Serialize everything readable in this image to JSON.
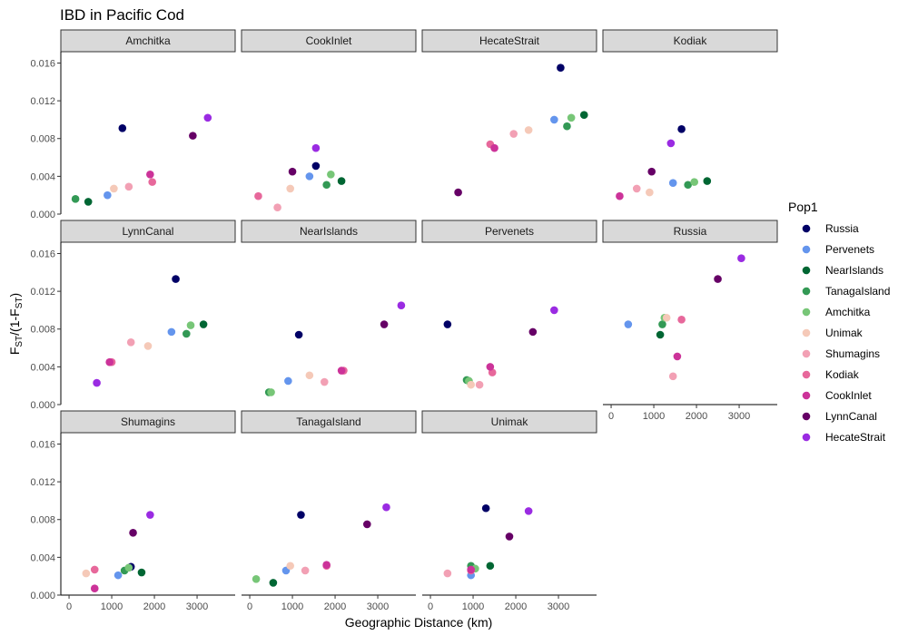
{
  "chart_data": {
    "type": "scatter",
    "title": "IBD in Pacific Cod",
    "xlabel": "Geographic Distance (km)",
    "ylabel": {
      "main": "F",
      "sub1": "ST",
      "mid": "/(1-F",
      "sub2": "ST",
      "end": ")"
    },
    "xlim": [
      -150,
      3850
    ],
    "ylim": [
      0,
      0.0172
    ],
    "x_ticks": [
      0,
      1000,
      2000,
      3000
    ],
    "y_ticks": [
      0.0,
      0.004,
      0.008,
      0.012,
      0.016
    ],
    "y_tick_labels": [
      "0.000",
      "0.004",
      "0.008",
      "0.012",
      "0.016"
    ],
    "legend": {
      "title": "Pop1",
      "entries": [
        {
          "name": "Russia",
          "color": "#000066"
        },
        {
          "name": "Pervenets",
          "color": "#6495ED"
        },
        {
          "name": "NearIslands",
          "color": "#006633"
        },
        {
          "name": "TanagaIsland",
          "color": "#339955"
        },
        {
          "name": "Amchitka",
          "color": "#77C677"
        },
        {
          "name": "Unimak",
          "color": "#F5C9B8"
        },
        {
          "name": "Shumagins",
          "color": "#F2A0B4"
        },
        {
          "name": "Kodiak",
          "color": "#E7689B"
        },
        {
          "name": "CookInlet",
          "color": "#CC3399"
        },
        {
          "name": "LynnCanal",
          "color": "#660066"
        },
        {
          "name": "HecateStrait",
          "color": "#9A2BE2"
        }
      ]
    },
    "facets": [
      {
        "name": "Amchitka",
        "points": [
          {
            "pop": "Russia",
            "x": 1250,
            "y": 0.0091
          },
          {
            "pop": "Pervenets",
            "x": 900,
            "y": 0.002
          },
          {
            "pop": "NearIslands",
            "x": 450,
            "y": 0.0013
          },
          {
            "pop": "TanagaIsland",
            "x": 150,
            "y": 0.0016
          },
          {
            "pop": "Unimak",
            "x": 1050,
            "y": 0.0027
          },
          {
            "pop": "Shumagins",
            "x": 1400,
            "y": 0.0029
          },
          {
            "pop": "Kodiak",
            "x": 1950,
            "y": 0.0034
          },
          {
            "pop": "CookInlet",
            "x": 1900,
            "y": 0.0042
          },
          {
            "pop": "LynnCanal",
            "x": 2900,
            "y": 0.0083
          },
          {
            "pop": "HecateStrait",
            "x": 3250,
            "y": 0.0102
          }
        ]
      },
      {
        "name": "CookInlet",
        "points": [
          {
            "pop": "Russia",
            "x": 1550,
            "y": 0.0051
          },
          {
            "pop": "Pervenets",
            "x": 1400,
            "y": 0.004
          },
          {
            "pop": "NearIslands",
            "x": 2150,
            "y": 0.0035
          },
          {
            "pop": "TanagaIsland",
            "x": 1800,
            "y": 0.0031
          },
          {
            "pop": "Amchitka",
            "x": 1900,
            "y": 0.0042
          },
          {
            "pop": "Unimak",
            "x": 950,
            "y": 0.0027
          },
          {
            "pop": "Shumagins",
            "x": 650,
            "y": 0.0007
          },
          {
            "pop": "Kodiak",
            "x": 200,
            "y": 0.0019
          },
          {
            "pop": "LynnCanal",
            "x": 1000,
            "y": 0.0045
          },
          {
            "pop": "HecateStrait",
            "x": 1550,
            "y": 0.007
          }
        ]
      },
      {
        "name": "HecateStrait",
        "points": [
          {
            "pop": "Russia",
            "x": 3050,
            "y": 0.0155
          },
          {
            "pop": "Pervenets",
            "x": 2900,
            "y": 0.01
          },
          {
            "pop": "NearIslands",
            "x": 3600,
            "y": 0.0105
          },
          {
            "pop": "TanagaIsland",
            "x": 3200,
            "y": 0.0093
          },
          {
            "pop": "Amchitka",
            "x": 3300,
            "y": 0.0102
          },
          {
            "pop": "Unimak",
            "x": 2300,
            "y": 0.0089
          },
          {
            "pop": "Shumagins",
            "x": 1950,
            "y": 0.0085
          },
          {
            "pop": "Kodiak",
            "x": 1400,
            "y": 0.0074
          },
          {
            "pop": "CookInlet",
            "x": 1500,
            "y": 0.007
          },
          {
            "pop": "LynnCanal",
            "x": 650,
            "y": 0.0023
          }
        ]
      },
      {
        "name": "Kodiak",
        "points": [
          {
            "pop": "Russia",
            "x": 1650,
            "y": 0.009
          },
          {
            "pop": "Pervenets",
            "x": 1450,
            "y": 0.0033
          },
          {
            "pop": "NearIslands",
            "x": 2250,
            "y": 0.0035
          },
          {
            "pop": "TanagaIsland",
            "x": 1800,
            "y": 0.0031
          },
          {
            "pop": "Amchitka",
            "x": 1950,
            "y": 0.0034
          },
          {
            "pop": "Unimak",
            "x": 900,
            "y": 0.0023
          },
          {
            "pop": "Shumagins",
            "x": 600,
            "y": 0.0027
          },
          {
            "pop": "CookInlet",
            "x": 200,
            "y": 0.0019
          },
          {
            "pop": "LynnCanal",
            "x": 950,
            "y": 0.0045
          },
          {
            "pop": "HecateStrait",
            "x": 1400,
            "y": 0.0075
          }
        ]
      },
      {
        "name": "LynnCanal",
        "points": [
          {
            "pop": "Russia",
            "x": 2500,
            "y": 0.0133
          },
          {
            "pop": "Pervenets",
            "x": 2400,
            "y": 0.0077
          },
          {
            "pop": "NearIslands",
            "x": 3150,
            "y": 0.0085
          },
          {
            "pop": "TanagaIsland",
            "x": 2750,
            "y": 0.0075
          },
          {
            "pop": "Amchitka",
            "x": 2850,
            "y": 0.0084
          },
          {
            "pop": "Unimak",
            "x": 1850,
            "y": 0.0062
          },
          {
            "pop": "Shumagins",
            "x": 1450,
            "y": 0.0066
          },
          {
            "pop": "Kodiak",
            "x": 1000,
            "y": 0.0045
          },
          {
            "pop": "CookInlet",
            "x": 950,
            "y": 0.0045
          },
          {
            "pop": "HecateStrait",
            "x": 650,
            "y": 0.0023
          }
        ]
      },
      {
        "name": "NearIslands",
        "points": [
          {
            "pop": "Russia",
            "x": 1150,
            "y": 0.0074
          },
          {
            "pop": "Pervenets",
            "x": 900,
            "y": 0.0025
          },
          {
            "pop": "TanagaIsland",
            "x": 450,
            "y": 0.0013
          },
          {
            "pop": "Amchitka",
            "x": 500,
            "y": 0.0013
          },
          {
            "pop": "Unimak",
            "x": 1400,
            "y": 0.0031
          },
          {
            "pop": "Shumagins",
            "x": 1750,
            "y": 0.0024
          },
          {
            "pop": "Kodiak",
            "x": 2200,
            "y": 0.0036
          },
          {
            "pop": "CookInlet",
            "x": 2150,
            "y": 0.0036
          },
          {
            "pop": "LynnCanal",
            "x": 3150,
            "y": 0.0085
          },
          {
            "pop": "HecateStrait",
            "x": 3550,
            "y": 0.0105
          }
        ]
      },
      {
        "name": "Pervenets",
        "points": [
          {
            "pop": "Russia",
            "x": 400,
            "y": 0.0085
          },
          {
            "pop": "NearIslands",
            "x": 900,
            "y": 0.0025
          },
          {
            "pop": "TanagaIsland",
            "x": 850,
            "y": 0.0026
          },
          {
            "pop": "Amchitka",
            "x": 900,
            "y": 0.0025
          },
          {
            "pop": "Unimak",
            "x": 950,
            "y": 0.0021
          },
          {
            "pop": "Shumagins",
            "x": 1150,
            "y": 0.0021
          },
          {
            "pop": "Kodiak",
            "x": 1450,
            "y": 0.0034
          },
          {
            "pop": "CookInlet",
            "x": 1400,
            "y": 0.004
          },
          {
            "pop": "LynnCanal",
            "x": 2400,
            "y": 0.0077
          },
          {
            "pop": "HecateStrait",
            "x": 2900,
            "y": 0.01
          }
        ]
      },
      {
        "name": "Russia",
        "points": [
          {
            "pop": "Pervenets",
            "x": 400,
            "y": 0.0085
          },
          {
            "pop": "NearIslands",
            "x": 1150,
            "y": 0.0074
          },
          {
            "pop": "TanagaIsland",
            "x": 1200,
            "y": 0.0085
          },
          {
            "pop": "Amchitka",
            "x": 1250,
            "y": 0.0092
          },
          {
            "pop": "Unimak",
            "x": 1300,
            "y": 0.0092
          },
          {
            "pop": "Shumagins",
            "x": 1450,
            "y": 0.003
          },
          {
            "pop": "Kodiak",
            "x": 1650,
            "y": 0.009
          },
          {
            "pop": "CookInlet",
            "x": 1550,
            "y": 0.0051
          },
          {
            "pop": "LynnCanal",
            "x": 2500,
            "y": 0.0133
          },
          {
            "pop": "HecateStrait",
            "x": 3050,
            "y": 0.0155
          }
        ]
      },
      {
        "name": "Shumagins",
        "points": [
          {
            "pop": "Russia",
            "x": 1450,
            "y": 0.003
          },
          {
            "pop": "Pervenets",
            "x": 1150,
            "y": 0.0021
          },
          {
            "pop": "NearIslands",
            "x": 1700,
            "y": 0.0024
          },
          {
            "pop": "TanagaIsland",
            "x": 1300,
            "y": 0.0026
          },
          {
            "pop": "Amchitka",
            "x": 1400,
            "y": 0.0029
          },
          {
            "pop": "Unimak",
            "x": 400,
            "y": 0.0023
          },
          {
            "pop": "Kodiak",
            "x": 600,
            "y": 0.0027
          },
          {
            "pop": "CookInlet",
            "x": 600,
            "y": 0.0007
          },
          {
            "pop": "LynnCanal",
            "x": 1500,
            "y": 0.0066
          },
          {
            "pop": "HecateStrait",
            "x": 1900,
            "y": 0.0085
          }
        ]
      },
      {
        "name": "TanagaIsland",
        "points": [
          {
            "pop": "Russia",
            "x": 1200,
            "y": 0.0085
          },
          {
            "pop": "Pervenets",
            "x": 850,
            "y": 0.0026
          },
          {
            "pop": "NearIslands",
            "x": 550,
            "y": 0.0013
          },
          {
            "pop": "Amchitka",
            "x": 150,
            "y": 0.0017
          },
          {
            "pop": "Unimak",
            "x": 950,
            "y": 0.0031
          },
          {
            "pop": "Shumagins",
            "x": 1300,
            "y": 0.0026
          },
          {
            "pop": "Kodiak",
            "x": 1800,
            "y": 0.0031
          },
          {
            "pop": "CookInlet",
            "x": 1800,
            "y": 0.0032
          },
          {
            "pop": "LynnCanal",
            "x": 2750,
            "y": 0.0075
          },
          {
            "pop": "HecateStrait",
            "x": 3200,
            "y": 0.0093
          }
        ]
      },
      {
        "name": "Unimak",
        "points": [
          {
            "pop": "Russia",
            "x": 1300,
            "y": 0.0092
          },
          {
            "pop": "Pervenets",
            "x": 950,
            "y": 0.0021
          },
          {
            "pop": "NearIslands",
            "x": 1400,
            "y": 0.0031
          },
          {
            "pop": "TanagaIsland",
            "x": 950,
            "y": 0.0031
          },
          {
            "pop": "Amchitka",
            "x": 1050,
            "y": 0.0028
          },
          {
            "pop": "Shumagins",
            "x": 400,
            "y": 0.0023
          },
          {
            "pop": "Kodiak",
            "x": 950,
            "y": 0.0026
          },
          {
            "pop": "CookInlet",
            "x": 950,
            "y": 0.0027
          },
          {
            "pop": "LynnCanal",
            "x": 1850,
            "y": 0.0062
          },
          {
            "pop": "HecateStrait",
            "x": 2300,
            "y": 0.0089
          }
        ]
      }
    ]
  }
}
